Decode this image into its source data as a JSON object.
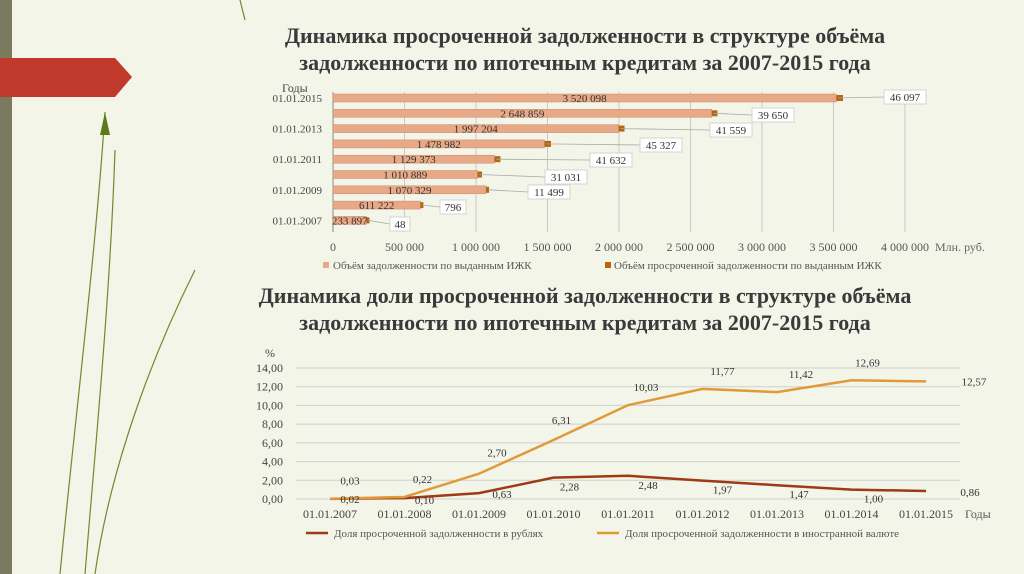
{
  "slide": {
    "title1": [
      "Динамика  просроченной задолженности в структуре объёма",
      "задолженности по ипотечным кредитам за 2007-2015 года"
    ],
    "title2": [
      "Динамика доли просроченной задолженности в структуре объёма",
      "задолженности по ипотечным кредитам за 2007-2015 года"
    ]
  },
  "colors": {
    "total": "#e8a987",
    "overdue": "#b5660f",
    "rub": "#9e3a14",
    "fx": "#e09a3a",
    "arrow": "#c0392b"
  },
  "chart_data": [
    {
      "type": "bar",
      "orientation": "horizontal",
      "ylabel": "Годы",
      "xlabel": "Млн. руб.",
      "xlim": [
        0,
        4000000
      ],
      "xticks": [
        "0",
        "500 000",
        "1 000 000",
        "1 500 000",
        "2 000 000",
        "2 500 000",
        "3 000 000",
        "3 500 000",
        "4 000 000"
      ],
      "yticks": [
        "01.01.2015",
        "01.01.2013",
        "01.01.2011",
        "01.01.2009",
        "01.01.2007"
      ],
      "series": [
        {
          "name": "Объём задолженности по выданным ИЖК",
          "values": [
            233897,
            611222,
            1070329,
            1010889,
            1129373,
            1478982,
            1997204,
            2648859,
            3520098
          ],
          "labels": [
            "233 897",
            "611 222",
            "1 070 329",
            "1 010 889",
            "1 129 373",
            "1 478 982",
            "1 997 204",
            "2 648 859",
            "3 520 098"
          ]
        },
        {
          "name": "Объём просроченной задолженности по выданным ИЖК",
          "values": [
            48,
            796,
            11499,
            31031,
            41632,
            45327,
            41559,
            39650,
            46097
          ],
          "labels": [
            "48",
            "796",
            "11 499",
            "31 031",
            "41 632",
            "45 327",
            "41 559",
            "39 650",
            "46 097"
          ]
        }
      ]
    },
    {
      "type": "line",
      "ylabel": "%",
      "xlabel": "Годы",
      "ylim": [
        0,
        14
      ],
      "yticks": [
        "0,00",
        "2,00",
        "4,00",
        "6,00",
        "8,00",
        "10,00",
        "12,00",
        "14,00"
      ],
      "categories": [
        "01.01.2007",
        "01.01.2008",
        "01.01.2009",
        "01.01.2010",
        "01.01.2011",
        "01.01.2012",
        "01.01.2013",
        "01.01.2014",
        "01.01.2015"
      ],
      "series": [
        {
          "name": "Доля просроченной задолженности в рублях",
          "values": [
            0.02,
            0.1,
            0.63,
            2.28,
            2.48,
            1.97,
            1.47,
            1.0,
            0.86
          ],
          "labels": [
            "0,02",
            "0,10",
            "0,63",
            "2,28",
            "2,48",
            "1,97",
            "1,47",
            "1,00",
            "0,86"
          ]
        },
        {
          "name": "Доля просроченной задолженности в иностранной валюте",
          "values": [
            0.03,
            0.22,
            2.7,
            6.31,
            10.03,
            11.77,
            11.42,
            12.69,
            12.57
          ],
          "labels": [
            "0,03",
            "0,22",
            "2,70",
            "6,31",
            "10,03",
            "11,77",
            "11,42",
            "12,69",
            "12,57"
          ]
        }
      ]
    }
  ]
}
